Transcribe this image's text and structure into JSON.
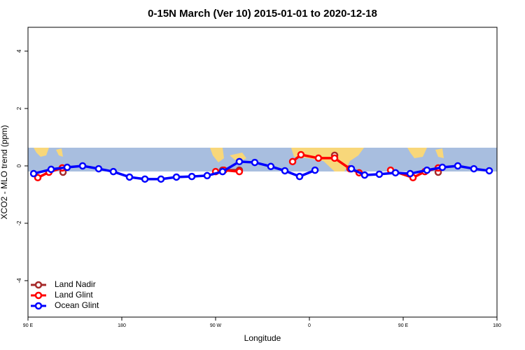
{
  "chart_data": {
    "type": "line",
    "title": "0-15N March (Ver 10)   2015-01-01 to 2020-12-18",
    "xlabel": "Longitude",
    "ylabel": "XCO2 - MLO trend (ppm)",
    "xlim": [
      90,
      540
    ],
    "ylim": [
      -5.27,
      4.83
    ],
    "xticks": [
      {
        "value": 90,
        "label": "90 E"
      },
      180,
      {
        "value": 270,
        "label": "90 W"
      },
      {
        "value": 360,
        "label": "0"
      },
      {
        "value": 450,
        "label": "90 E"
      },
      {
        "value": 540,
        "label": "180"
      }
    ],
    "yticks": [
      -4,
      -2,
      0,
      2,
      4
    ],
    "legend": "bottom left",
    "series": [
      {
        "name": "Land Nadir",
        "color": "#a52a2a",
        "x": [
          123.6,
          null,
          276.7,
          292.8,
          null,
          384.2,
          null,
          483.6
        ],
        "values": [
          -0.22,
          null,
          -0.15,
          -0.15,
          null,
          0.37,
          null,
          -0.22
        ]
      },
      {
        "name": "Land Glint",
        "color": "#ff0000",
        "x": [
          99.4,
          110.1,
          122.9,
          null,
          270,
          278,
          292.8,
          null,
          343.9,
          351.9,
          368.7,
          384.2,
          398.9,
          407.7,
          null,
          437.9,
          459.4,
          470.8,
          483.6
        ],
        "values": [
          -0.41,
          -0.22,
          -0.07,
          null,
          -0.2,
          -0.15,
          -0.2,
          null,
          0.15,
          0.39,
          0.27,
          0.27,
          -0.1,
          -0.24,
          null,
          -0.15,
          -0.41,
          -0.2,
          -0.07
        ]
      },
      {
        "name": "Ocean Glint",
        "color": "#0000ff",
        "x": [
          95.4,
          112.2,
          127.6,
          142.4,
          157.8,
          171.9,
          187.4,
          202.2,
          217.6,
          232.4,
          247.2,
          261.9,
          276.7,
          292.8,
          307.6,
          323.0,
          336.5,
          350.6,
          365.4,
          null,
          400.3,
          413.0,
          427.1,
          442.6,
          456.7,
          472.8,
          487.6,
          502.4,
          517.8,
          532.6
        ],
        "values": [
          -0.27,
          -0.12,
          -0.05,
          0,
          -0.1,
          -0.2,
          -0.39,
          -0.46,
          -0.46,
          -0.39,
          -0.37,
          -0.34,
          -0.2,
          0.15,
          0.12,
          -0.02,
          -0.17,
          -0.37,
          -0.15,
          null,
          -0.1,
          -0.32,
          -0.29,
          -0.24,
          -0.27,
          -0.15,
          -0.05,
          0,
          -0.1,
          -0.17
        ]
      }
    ]
  }
}
